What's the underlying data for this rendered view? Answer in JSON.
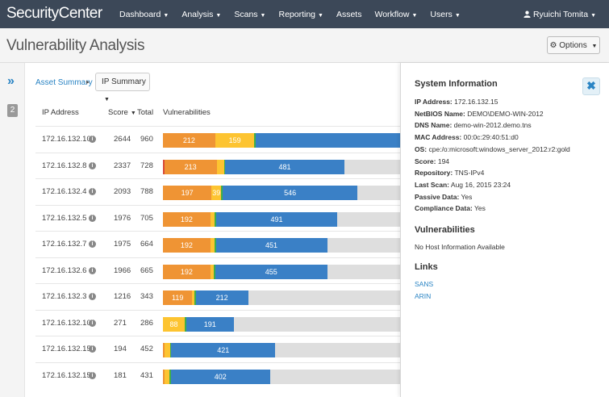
{
  "app": {
    "logo": "SecurityCenter",
    "nav": [
      {
        "label": "Dashboard"
      },
      {
        "label": "Analysis"
      },
      {
        "label": "Scans"
      },
      {
        "label": "Reporting"
      },
      {
        "label": "Assets"
      },
      {
        "label": "Workflow"
      },
      {
        "label": "Users"
      }
    ],
    "user": "Ryuichi Tomita"
  },
  "page": {
    "title": "Vulnerability Analysis",
    "options_label": "Options"
  },
  "gutter": {
    "count": "2"
  },
  "breadcrumb": {
    "link": "Asset Summary",
    "select": "IP Summary"
  },
  "table": {
    "headers": {
      "ip": "IP Address",
      "score": "Score",
      "total": "Total",
      "vulns": "Vulnerabilities"
    },
    "colors": {
      "critical": "#d84a3a",
      "high": "#ef9434",
      "medium": "#fdc431",
      "low": "#3fae49",
      "info": "#3a80c6",
      "empty": "#dedede"
    },
    "rows": [
      {
        "ip": "172.16.132.10",
        "score": "2644",
        "total": "960",
        "segments": [
          {
            "type": "high",
            "value": "212",
            "label": "212"
          },
          {
            "type": "medium",
            "value": "159",
            "label": "159"
          },
          {
            "type": "low",
            "value": "3",
            "label": ""
          },
          {
            "type": "info",
            "value": "586",
            "label": ""
          }
        ]
      },
      {
        "ip": "172.16.132.8",
        "score": "2337",
        "total": "728",
        "segments": [
          {
            "type": "critical",
            "value": "2",
            "label": ""
          },
          {
            "type": "high",
            "value": "213",
            "label": "213"
          },
          {
            "type": "medium",
            "value": "30",
            "label": ""
          },
          {
            "type": "low",
            "value": "2",
            "label": ""
          },
          {
            "type": "info",
            "value": "481",
            "label": "481"
          }
        ]
      },
      {
        "ip": "172.16.132.4",
        "score": "2093",
        "total": "788",
        "segments": [
          {
            "type": "high",
            "value": "197",
            "label": "197"
          },
          {
            "type": "medium",
            "value": "39",
            "label": "39"
          },
          {
            "type": "low",
            "value": "6",
            "label": ""
          },
          {
            "type": "info",
            "value": "546",
            "label": "546"
          }
        ]
      },
      {
        "ip": "172.16.132.5",
        "score": "1976",
        "total": "705",
        "segments": [
          {
            "type": "high",
            "value": "192",
            "label": "192"
          },
          {
            "type": "medium",
            "value": "18",
            "label": ""
          },
          {
            "type": "low",
            "value": "4",
            "label": ""
          },
          {
            "type": "info",
            "value": "491",
            "label": "491"
          }
        ]
      },
      {
        "ip": "172.16.132.7",
        "score": "1975",
        "total": "664",
        "segments": [
          {
            "type": "high",
            "value": "192",
            "label": "192"
          },
          {
            "type": "medium",
            "value": "17",
            "label": ""
          },
          {
            "type": "low",
            "value": "4",
            "label": ""
          },
          {
            "type": "info",
            "value": "451",
            "label": "451"
          }
        ]
      },
      {
        "ip": "172.16.132.6",
        "score": "1966",
        "total": "665",
        "segments": [
          {
            "type": "high",
            "value": "192",
            "label": "192"
          },
          {
            "type": "medium",
            "value": "14",
            "label": ""
          },
          {
            "type": "low",
            "value": "4",
            "label": ""
          },
          {
            "type": "info",
            "value": "455",
            "label": "455"
          }
        ]
      },
      {
        "ip": "172.16.132.3",
        "score": "1216",
        "total": "343",
        "segments": [
          {
            "type": "high",
            "value": "119",
            "label": "119"
          },
          {
            "type": "medium",
            "value": "9",
            "label": ""
          },
          {
            "type": "low",
            "value": "3",
            "label": ""
          },
          {
            "type": "info",
            "value": "212",
            "label": "212"
          }
        ]
      },
      {
        "ip": "172.16.132.10",
        "score": "271",
        "total": "286",
        "segments": [
          {
            "type": "medium",
            "value": "88",
            "label": "88"
          },
          {
            "type": "low",
            "value": "7",
            "label": ""
          },
          {
            "type": "info",
            "value": "191",
            "label": "191"
          }
        ]
      },
      {
        "ip": "172.16.132.15",
        "score": "194",
        "total": "452",
        "segments": [
          {
            "type": "high",
            "value": "6",
            "label": ""
          },
          {
            "type": "medium",
            "value": "23",
            "label": ""
          },
          {
            "type": "low",
            "value": "2",
            "label": ""
          },
          {
            "type": "info",
            "value": "421",
            "label": "421"
          }
        ]
      },
      {
        "ip": "172.16.132.15",
        "score": "181",
        "total": "431",
        "segments": [
          {
            "type": "high",
            "value": "6",
            "label": ""
          },
          {
            "type": "medium",
            "value": "21",
            "label": ""
          },
          {
            "type": "low",
            "value": "2",
            "label": ""
          },
          {
            "type": "info",
            "value": "402",
            "label": "402"
          }
        ]
      }
    ]
  },
  "panel": {
    "title": "System Information",
    "fields": [
      {
        "label": "IP Address:",
        "value": "172.16.132.15"
      },
      {
        "label": "NetBIOS Name:",
        "value": "DEMO\\DEMO-WIN-2012"
      },
      {
        "label": "DNS Name:",
        "value": "demo-win-2012.demo.tns"
      },
      {
        "label": "MAC Address:",
        "value": "00:0c:29:40:51:d0"
      },
      {
        "label": "OS:",
        "value": "cpe:/o:microsoft:windows_server_2012:r2:gold"
      },
      {
        "label": "Score:",
        "value": "194"
      },
      {
        "label": "Repository:",
        "value": "TNS-IPv4"
      },
      {
        "label": "Last Scan:",
        "value": "Aug 16, 2015 23:24"
      },
      {
        "label": "Passive Data:",
        "value": "Yes"
      },
      {
        "label": "Compliance Data:",
        "value": "Yes"
      }
    ],
    "vuln_title": "Vulnerabilities",
    "vuln_text": "No Host Information Available",
    "links_title": "Links",
    "links": [
      {
        "label": "SANS"
      },
      {
        "label": "ARIN"
      }
    ]
  }
}
